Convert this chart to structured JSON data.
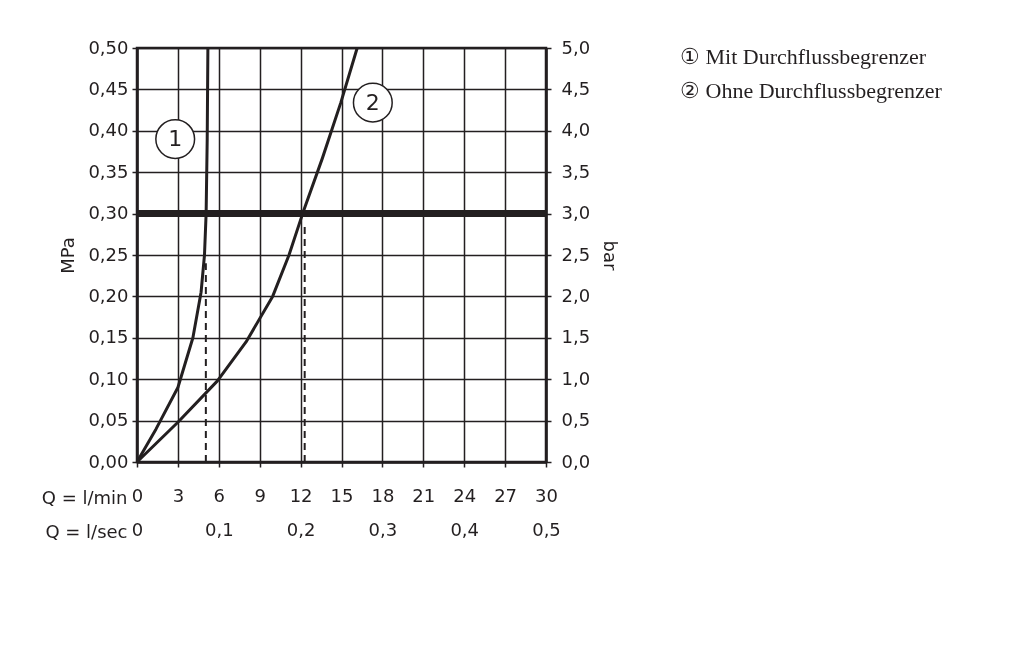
{
  "chart_data": {
    "type": "line",
    "xlabel": "Q = l/min",
    "x2label": "Q = l/sec",
    "ylabel": "MPa",
    "y2label": "bar",
    "xlim": [
      0,
      30
    ],
    "xticks": [
      0,
      3,
      6,
      9,
      12,
      15,
      18,
      21,
      24,
      27,
      30
    ],
    "x2lim": [
      0,
      0.5
    ],
    "x2ticks": [
      0,
      {
        "value": 0.1,
        "label": "0,1"
      },
      {
        "value": 0.2,
        "label": "0,2"
      },
      {
        "value": 0.3,
        "label": "0,3"
      },
      {
        "value": 0.4,
        "label": "0,4"
      },
      {
        "value": 0.5,
        "label": "0,5"
      }
    ],
    "ylim": [
      0,
      0.5
    ],
    "yticks": [
      {
        "value": 0,
        "label": "0,00"
      },
      {
        "value": 0.05,
        "label": "0,05"
      },
      {
        "value": 0.1,
        "label": "0,10"
      },
      {
        "value": 0.15,
        "label": "0,15"
      },
      {
        "value": 0.2,
        "label": "0,20"
      },
      {
        "value": 0.25,
        "label": "0,25"
      },
      {
        "value": 0.3,
        "label": "0,30"
      },
      {
        "value": 0.35,
        "label": "0,35"
      },
      {
        "value": 0.4,
        "label": "0,40"
      },
      {
        "value": 0.45,
        "label": "0,45"
      },
      {
        "value": 0.5,
        "label": "0,50"
      }
    ],
    "y2lim": [
      0,
      5
    ],
    "y2ticks": [
      {
        "value": 0,
        "label": "0,0"
      },
      {
        "value": 0.5,
        "label": "0,5"
      },
      {
        "value": 1,
        "label": "1,0"
      },
      {
        "value": 1.5,
        "label": "1,5"
      },
      {
        "value": 2,
        "label": "2,0"
      },
      {
        "value": 2.5,
        "label": "2,5"
      },
      {
        "value": 3,
        "label": "3,0"
      },
      {
        "value": 3.5,
        "label": "3,5"
      },
      {
        "value": 4,
        "label": "4,0"
      },
      {
        "value": 4.5,
        "label": "4,5"
      },
      {
        "value": 5,
        "label": "5,0"
      }
    ],
    "grid": true,
    "series": [
      {
        "name": "1",
        "color": "#231f20",
        "x": [
          0,
          1.4,
          3,
          4.1,
          4.7,
          4.95,
          5.07,
          5.15,
          5.2
        ],
        "values": [
          0,
          0.04,
          0.09,
          0.15,
          0.205,
          0.25,
          0.3,
          0.39,
          0.5
        ]
      },
      {
        "name": "2",
        "color": "#231f20",
        "x": [
          0,
          3,
          5.9,
          8,
          9.95,
          11.15,
          12.15,
          13.6,
          14.95,
          16.15
        ],
        "values": [
          0,
          0.048,
          0.098,
          0.145,
          0.2,
          0.25,
          0.3,
          0.367,
          0.434,
          0.5
        ]
      },
      {
        "color": "#231f20",
        "line_style": "dashed",
        "x": [
          5.05,
          5.05
        ],
        "values": [
          0,
          0.24
        ]
      },
      {
        "color": "#231f20",
        "line_style": "dashed",
        "x": [
          12.3,
          12.3
        ],
        "values": [
          0,
          0.29
        ]
      }
    ],
    "ref_lines": [
      {
        "axis": "y",
        "value": 0.3,
        "color": "#231f20"
      }
    ],
    "annotations": [
      "① Mit Durchflussbegrenzer",
      "② Ohne Durchflussbegrenzer"
    ]
  }
}
